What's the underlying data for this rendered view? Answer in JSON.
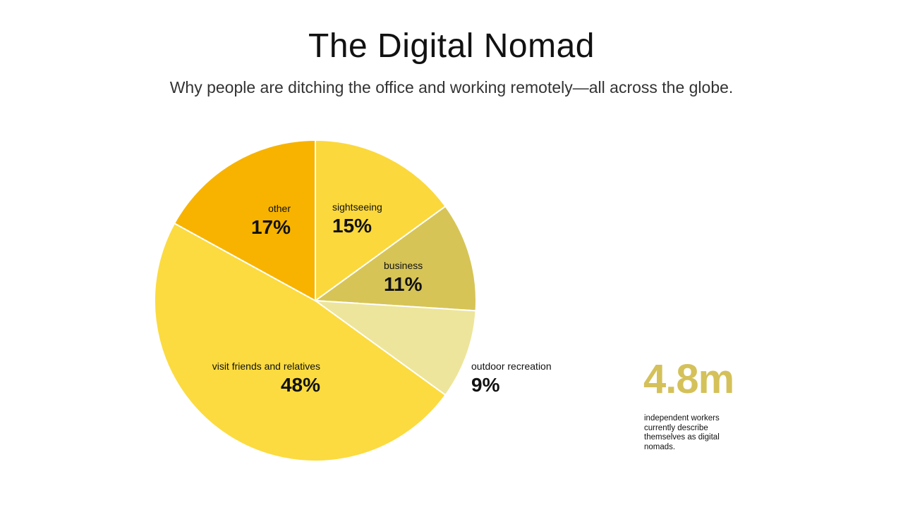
{
  "header": {
    "title": "The Digital Nomad",
    "subtitle": "Why people are ditching the office and working remotely—all across the globe."
  },
  "stat": {
    "value": "4.8m",
    "caption": "independent workers currently describe themselves as digital nomads.",
    "color": "#d4c15a"
  },
  "chart_data": {
    "type": "pie",
    "title": "",
    "slices": [
      {
        "label": "sightseeing",
        "value": 15,
        "display": "15%",
        "color": "#fbd83c"
      },
      {
        "label": "business",
        "value": 11,
        "display": "11%",
        "color": "#d6c457"
      },
      {
        "label": "outdoor recreation",
        "value": 9,
        "display": "9%",
        "color": "#ede59b"
      },
      {
        "label": "visit friends and relatives",
        "value": 48,
        "display": "48%",
        "color": "#fbdb3f"
      },
      {
        "label": "other",
        "value": 17,
        "display": "17%",
        "color": "#f7b300"
      }
    ],
    "start_angle_deg": -90,
    "direction": "clockwise",
    "slice_border_color": "#ffffff"
  }
}
